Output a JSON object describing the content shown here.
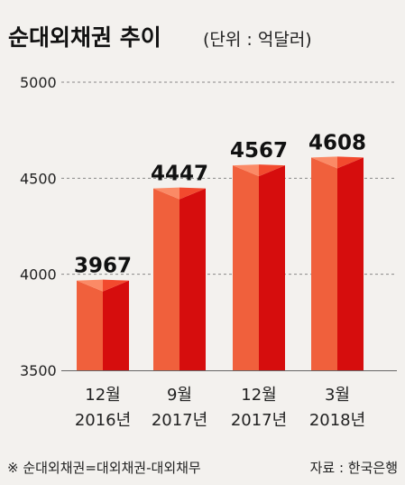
{
  "title": {
    "main": "순대외채권 추이",
    "unit": "(단위 : 억달러)"
  },
  "chart_data": {
    "type": "bar",
    "categories": [
      [
        "12월",
        "2016년"
      ],
      [
        "9월",
        "2017년"
      ],
      [
        "12월",
        "2017년"
      ],
      [
        "3월",
        "2018년"
      ]
    ],
    "values": [
      3967,
      4447,
      4567,
      4608
    ],
    "value_labels": [
      "3967",
      "4447",
      "4567",
      "4608"
    ],
    "ylim": [
      3500,
      5000
    ],
    "yticks": [
      3500,
      4000,
      4500,
      5000
    ],
    "ytick_labels": [
      "3500",
      "4000",
      "4500",
      "5000"
    ],
    "grid": true,
    "colors": {
      "bar_left": "#f0603c",
      "bar_right": "#d60d0d",
      "bar_top_left": "#fb8a66",
      "bar_top_right": "#f24a2e",
      "grid": "#888888"
    }
  },
  "footnote": {
    "left": "※ 순대외채권=대외채권-대외채무",
    "right": "자료 : 한국은행"
  }
}
